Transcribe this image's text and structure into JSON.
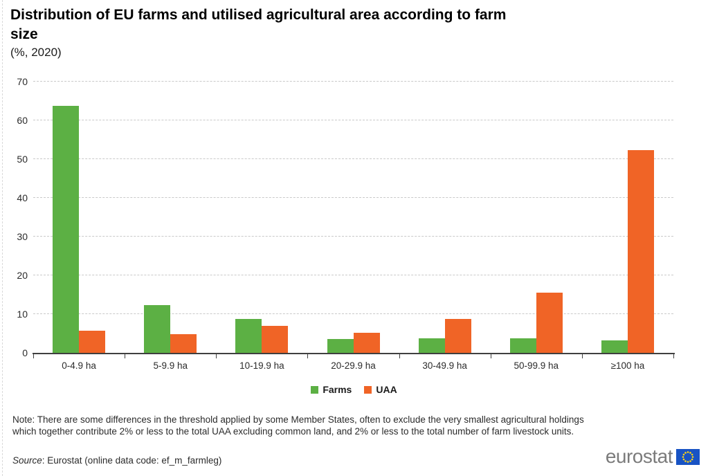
{
  "title": "Distribution of EU farms and utilised agricultural area according to farm size",
  "subtitle": "(%, 2020)",
  "chart_data": {
    "type": "bar",
    "categories": [
      "0-4.9 ha",
      "5-9.9 ha",
      "10-19.9 ha",
      "20-29.9 ha",
      "30-49.9 ha",
      "50-99.9 ha",
      "≥100 ha"
    ],
    "series": [
      {
        "name": "Farms",
        "color": "#5CB044",
        "values": [
          63.8,
          12.3,
          8.7,
          3.5,
          3.8,
          3.8,
          3.3
        ]
      },
      {
        "name": "UAA",
        "color": "#F06426",
        "values": [
          5.7,
          4.8,
          6.9,
          5.2,
          8.7,
          15.6,
          52.4
        ]
      }
    ],
    "title": "Distribution of EU farms and utilised agricultural area according to farm size",
    "subtitle": "(%, 2020)",
    "xlabel": "",
    "ylabel": "%",
    "ylim": [
      0,
      70
    ],
    "yticks": [
      0,
      10,
      20,
      30,
      40,
      50,
      60,
      70
    ],
    "grid": "horizontal-dashed",
    "legend_position": "bottom-center"
  },
  "note": "Note: There are some differences in the threshold applied by some Member States, often to exclude the very smallest agricultural holdings which together contribute 2% or less to the total UAA excluding common land, and 2% or less to the total number of farm livestock units.",
  "source": {
    "prefix": "Source",
    "rest": ": Eurostat (online data code: ef_m_farmleg)"
  },
  "logo": {
    "text": "eurostat"
  },
  "colors": {
    "farms_green": "#5CB044",
    "uaa_orange": "#F06426",
    "axis": "#3f3f3f",
    "gridline": "#c9c9c9",
    "logo_gray": "#7b7b7b",
    "flag_blue": "#1853C4",
    "flag_stars": "#FFD617"
  }
}
